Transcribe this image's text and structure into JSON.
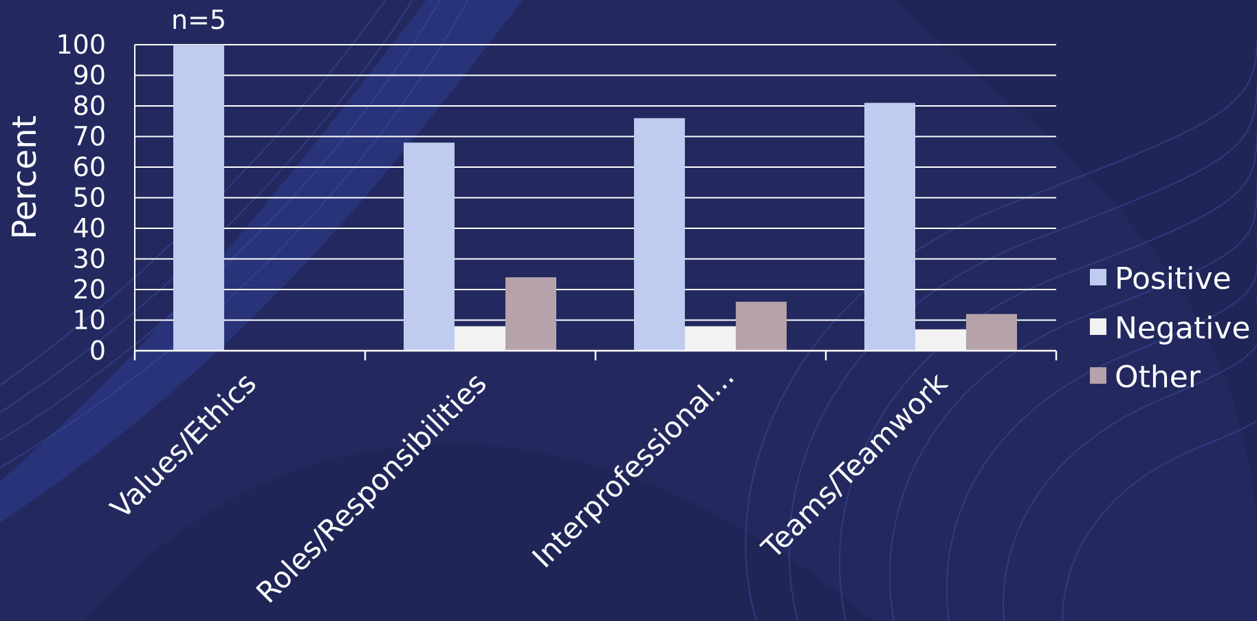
{
  "chart_data": {
    "type": "bar",
    "categories": [
      "Values/Ethics",
      "Roles/Responsibilities",
      "Interprofessional...",
      "Teams/Teamwork"
    ],
    "series": [
      {
        "name": "Positive",
        "values": [
          100,
          68,
          76,
          81
        ],
        "color": "#c0cbf0"
      },
      {
        "name": "Negative",
        "values": [
          0,
          8,
          8,
          7
        ],
        "color": "#f2f2f2"
      },
      {
        "name": "Other",
        "values": [
          0,
          24,
          16,
          12
        ],
        "color": "#b5a2ab"
      }
    ],
    "ylabel": "Percent",
    "ylim": [
      0,
      100
    ],
    "yticks": [
      0,
      10,
      20,
      30,
      40,
      50,
      60,
      70,
      80,
      90,
      100
    ],
    "grid": true,
    "legend": "right",
    "annotation": "n=5"
  },
  "colors": {
    "background": "#23295e",
    "grid": "#ffffff",
    "text": "#ffffff"
  }
}
